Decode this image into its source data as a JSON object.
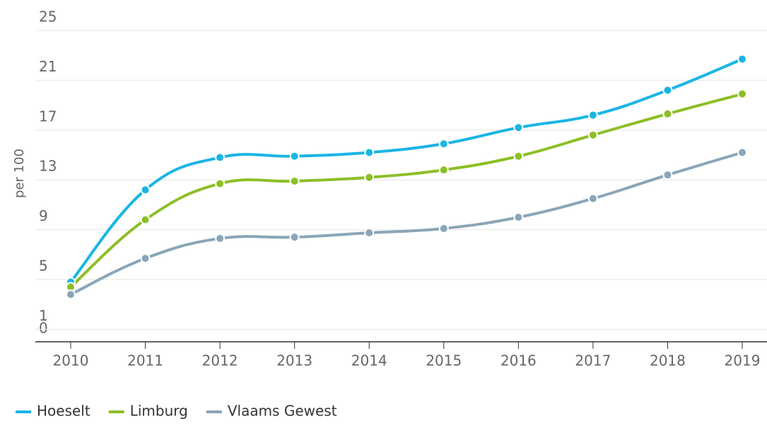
{
  "chart_data": {
    "type": "line",
    "y_label": "per 100",
    "categories": [
      "2010",
      "2011",
      "2012",
      "2013",
      "2014",
      "2015",
      "2016",
      "2017",
      "2018",
      "2019"
    ],
    "series": [
      {
        "name": "Hoeselt",
        "color": "#1ab5e4",
        "values": [
          4.8,
          12.2,
          14.8,
          14.9,
          15.2,
          15.9,
          17.2,
          18.2,
          20.2,
          22.7
        ]
      },
      {
        "name": "Limburg",
        "color": "#8cbf26",
        "values": [
          4.4,
          9.8,
          12.7,
          12.9,
          13.2,
          13.8,
          14.9,
          16.6,
          18.3,
          19.9
        ]
      },
      {
        "name": "Vlaams Gewest",
        "color": "#8aa6b8",
        "values": [
          3.8,
          6.7,
          8.3,
          8.4,
          8.75,
          9.1,
          10.0,
          11.5,
          13.4,
          15.2
        ]
      }
    ],
    "ylim": [
      0,
      25
    ],
    "yticks": [
      0,
      1,
      5,
      9,
      13,
      17,
      21,
      25
    ],
    "grid": true
  }
}
